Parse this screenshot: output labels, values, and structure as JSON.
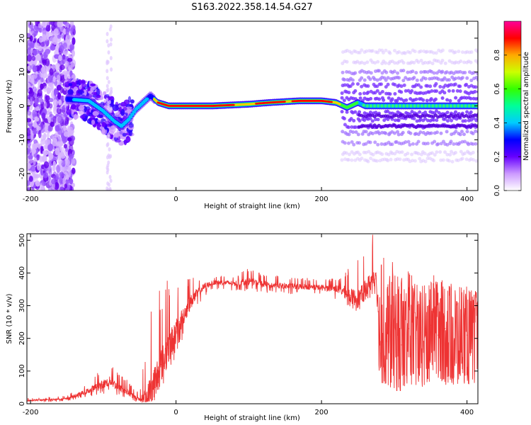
{
  "title": "S163.2022.358.14.54.G27",
  "chart_data": [
    {
      "type": "heatmap",
      "xlabel": "Height of straight line (km)",
      "ylabel": "Frequency (Hz)",
      "xlim": [
        -205,
        415
      ],
      "ylim": [
        -25,
        25
      ],
      "xticks": [
        -200,
        0,
        200,
        400
      ],
      "yticks": [
        -20,
        -10,
        0,
        10,
        20
      ],
      "grid": false,
      "colorbar": {
        "label": "Normalized spectral amplitude",
        "range": [
          0,
          1
        ],
        "ticks": [
          "0.0",
          "0.2",
          "0.4",
          "0.6",
          "0.8"
        ],
        "colormap": [
          "#ffffff",
          "#cc99ff",
          "#6600ff",
          "#0000ff",
          "#00ccff",
          "#00ff99",
          "#33ff00",
          "#ccff00",
          "#ffaa00",
          "#ff0000",
          "#ff0099"
        ]
      },
      "ridge": {
        "description": "main spectral ridge",
        "points": [
          [
            -150,
            2
          ],
          [
            -120,
            1.5
          ],
          [
            -100,
            -1.5
          ],
          [
            -85,
            -4.5
          ],
          [
            -75,
            -6
          ],
          [
            -65,
            -4
          ],
          [
            -55,
            -1
          ],
          [
            -45,
            1
          ],
          [
            -35,
            3
          ],
          [
            -25,
            1
          ],
          [
            -10,
            0
          ],
          [
            50,
            0
          ],
          [
            100,
            0.5
          ],
          [
            130,
            1
          ],
          [
            170,
            1.5
          ],
          [
            200,
            1.5
          ],
          [
            220,
            1
          ],
          [
            235,
            -0.5
          ],
          [
            250,
            1
          ],
          [
            260,
            0
          ],
          [
            300,
            0
          ],
          [
            360,
            0
          ],
          [
            415,
            0
          ]
        ],
        "peak_segments": [
          [
            -25,
            80
          ],
          [
            110,
            150
          ],
          [
            160,
            215
          ]
        ]
      }
    },
    {
      "type": "line",
      "xlabel": "Height of straight line (km)",
      "ylabel": "SNR (10 * v/v)",
      "xlim": [
        -205,
        415
      ],
      "ylim": [
        0,
        520
      ],
      "xticks": [
        -200,
        0,
        200,
        400
      ],
      "yticks": [
        0,
        100,
        200,
        300,
        400,
        500
      ],
      "grid": false,
      "color": "#ee3333",
      "x": [
        -205,
        -180,
        -150,
        -120,
        -100,
        -90,
        -80,
        -70,
        -60,
        -50,
        -40,
        -30,
        -20,
        -10,
        0,
        10,
        20,
        30,
        40,
        50,
        60,
        80,
        100,
        120,
        150,
        180,
        200,
        220,
        230,
        240,
        250,
        260,
        270,
        275,
        280,
        290,
        300,
        310,
        320,
        330,
        340,
        350,
        360,
        370,
        380,
        390,
        400,
        415
      ],
      "y": [
        10,
        12,
        15,
        40,
        60,
        70,
        50,
        40,
        25,
        12,
        20,
        60,
        120,
        170,
        220,
        270,
        310,
        340,
        360,
        370,
        372,
        368,
        375,
        365,
        360,
        358,
        355,
        352,
        345,
        330,
        320,
        350,
        380,
        400,
        200,
        190,
        210,
        180,
        230,
        200,
        190,
        240,
        210,
        230,
        200,
        220,
        210,
        200
      ],
      "envelope_max": [
        18,
        20,
        25,
        70,
        110,
        120,
        100,
        80,
        55,
        30,
        200,
        380,
        340,
        400,
        360,
        370,
        390,
        385,
        390,
        385,
        395,
        390,
        415,
        395,
        390,
        385,
        380,
        385,
        400,
        420,
        440,
        460,
        520,
        490,
        480,
        420,
        440,
        400,
        420,
        390,
        400,
        410,
        380,
        390,
        370,
        380,
        360,
        340
      ],
      "envelope_min": [
        5,
        5,
        8,
        20,
        30,
        35,
        25,
        15,
        8,
        5,
        5,
        10,
        40,
        90,
        150,
        200,
        260,
        300,
        330,
        345,
        350,
        345,
        345,
        340,
        335,
        335,
        330,
        320,
        300,
        290,
        280,
        310,
        330,
        320,
        65,
        60,
        40,
        40,
        50,
        55,
        45,
        60,
        50,
        55,
        45,
        50,
        45,
        40
      ]
    }
  ]
}
